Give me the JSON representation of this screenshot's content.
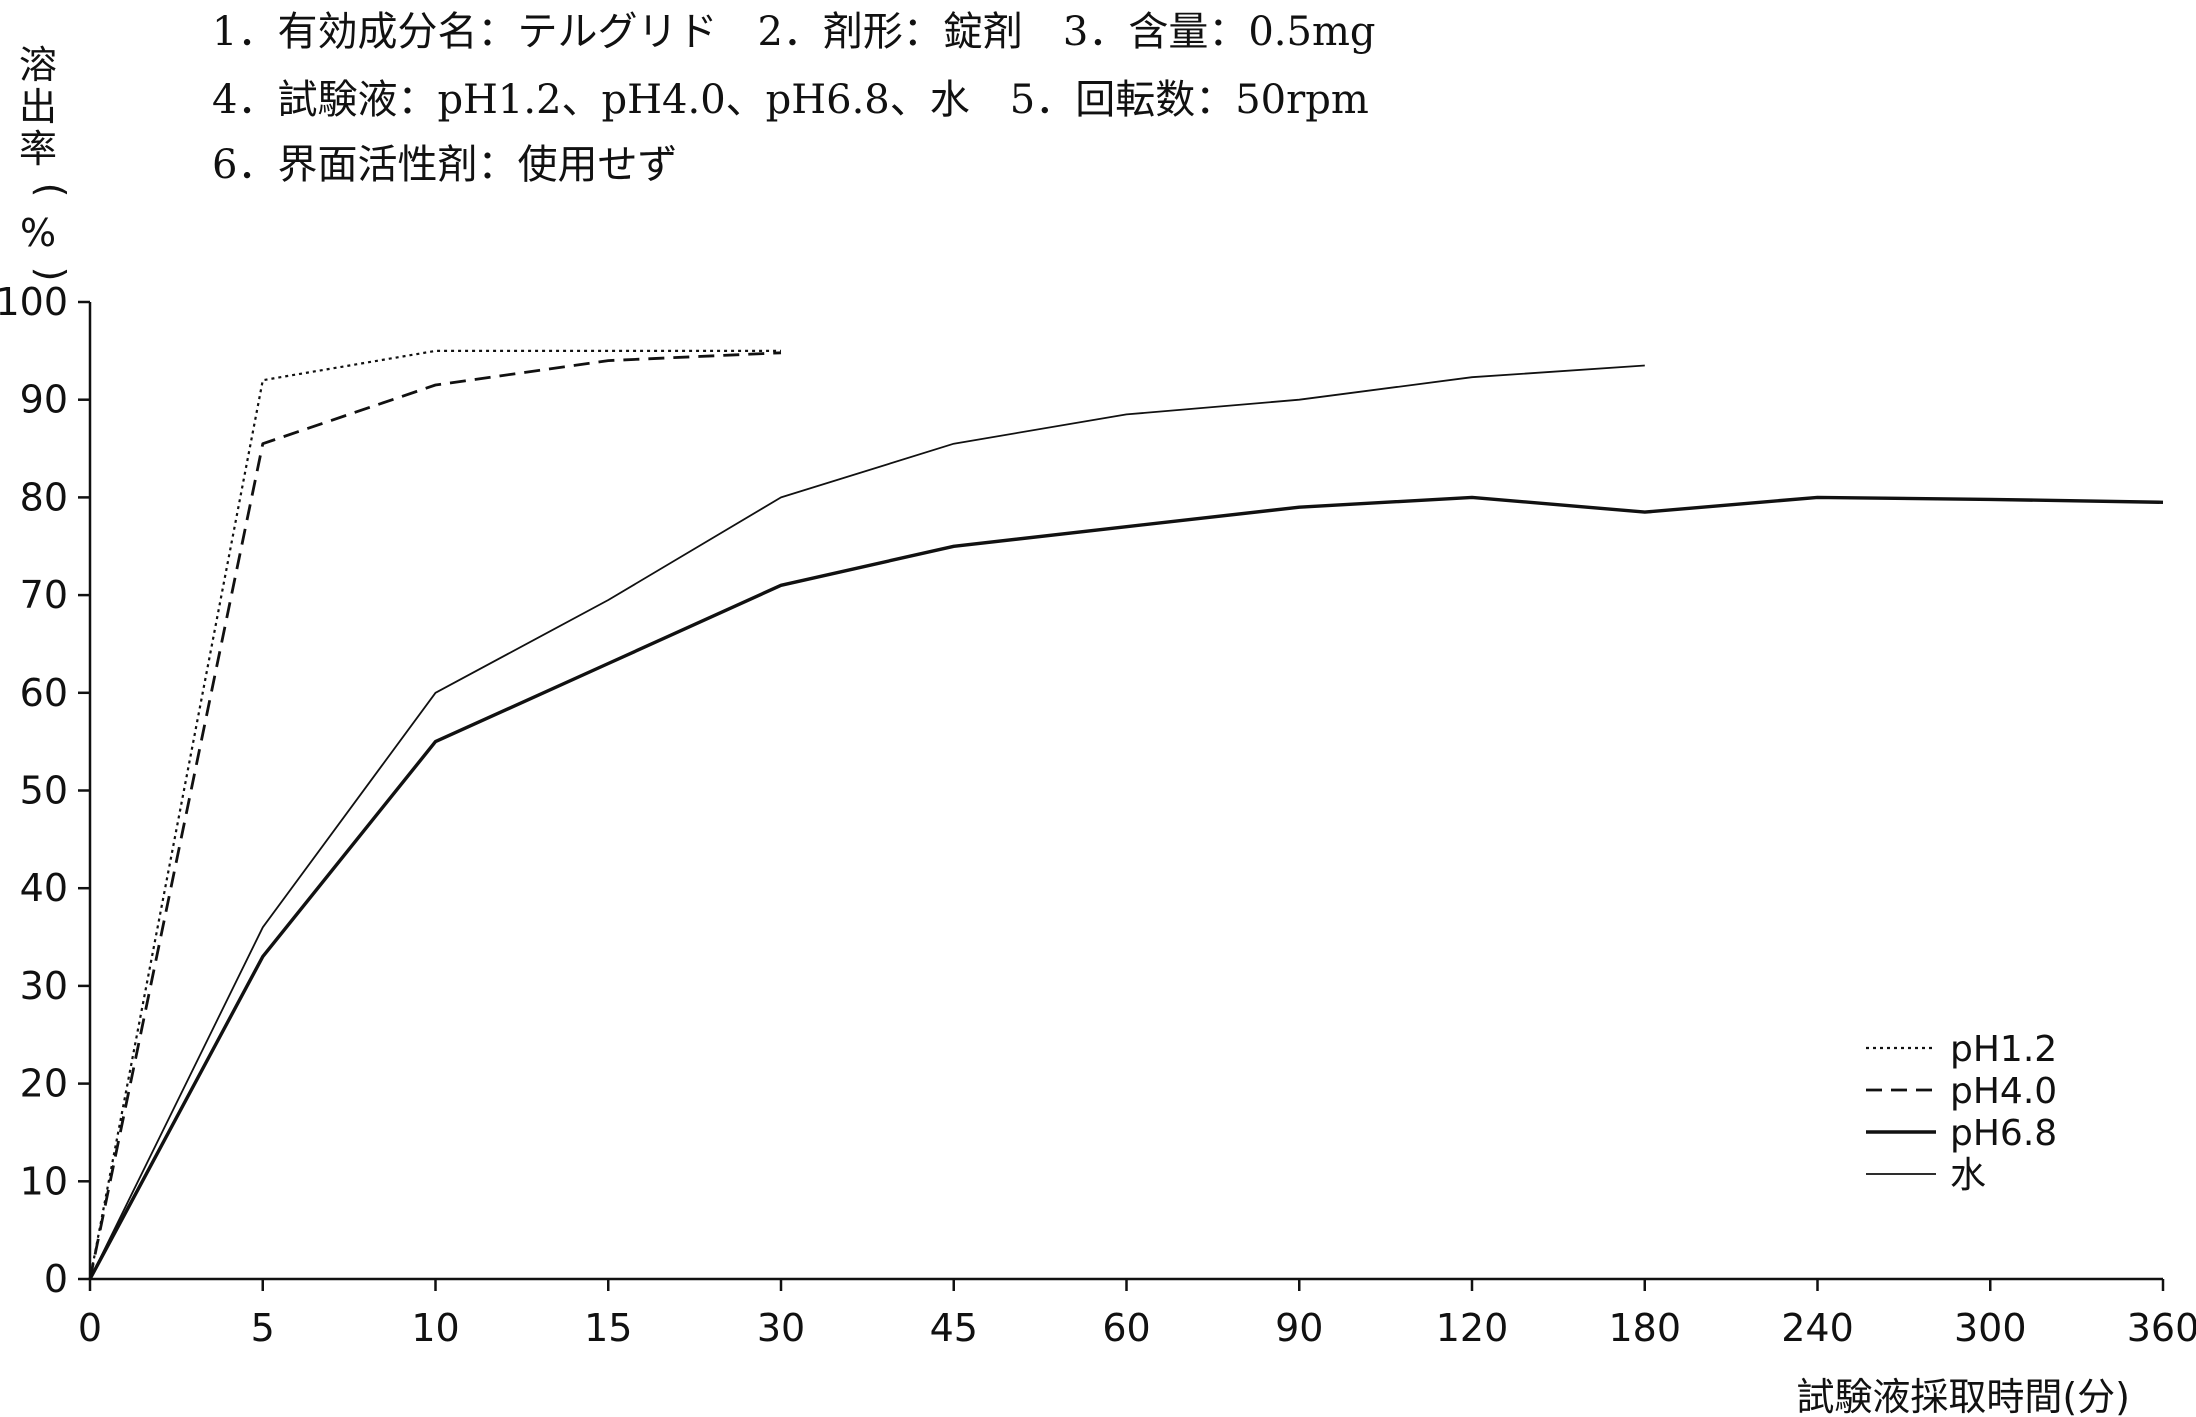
{
  "chart_data": {
    "type": "line",
    "title_lines": [
      "1．有効成分名：テルグリド　2．剤形：錠剤　3．含量：0.5mg",
      "4．試験液：pH1.2、pH4.0、pH6.8、水　5．回転数：50rpm",
      "6．界面活性剤：使用せず"
    ],
    "ylabel": "溶出率(%)",
    "xlabel": "試験液採取時間(分)",
    "ylim": [
      0,
      100
    ],
    "yticks": [
      "0",
      "10",
      "20",
      "30",
      "40",
      "50",
      "60",
      "70",
      "80",
      "90",
      "100"
    ],
    "categories": [
      "0",
      "5",
      "10",
      "15",
      "30",
      "45",
      "60",
      "90",
      "120",
      "180",
      "240",
      "300",
      "360"
    ],
    "series": [
      {
        "name": "pH1.2",
        "style": "dotted",
        "values": [
          0,
          92,
          95,
          95,
          95,
          null,
          null,
          null,
          null,
          null,
          null,
          null,
          null
        ]
      },
      {
        "name": "pH4.0",
        "style": "dashed",
        "values": [
          0,
          85.5,
          91.5,
          94,
          94.8,
          null,
          null,
          null,
          null,
          null,
          null,
          null,
          null
        ]
      },
      {
        "name": "pH6.8",
        "style": "solid-thick",
        "values": [
          0,
          33,
          55,
          63,
          71,
          75,
          77,
          79,
          80,
          78.5,
          80,
          79.8,
          79.5
        ]
      },
      {
        "name": "水",
        "style": "solid-thin",
        "values": [
          0,
          36,
          60,
          69.5,
          80,
          85.5,
          88.5,
          90,
          92.3,
          93.5,
          null,
          null,
          null
        ]
      }
    ],
    "grid": false,
    "legend_position": "bottom-right"
  }
}
